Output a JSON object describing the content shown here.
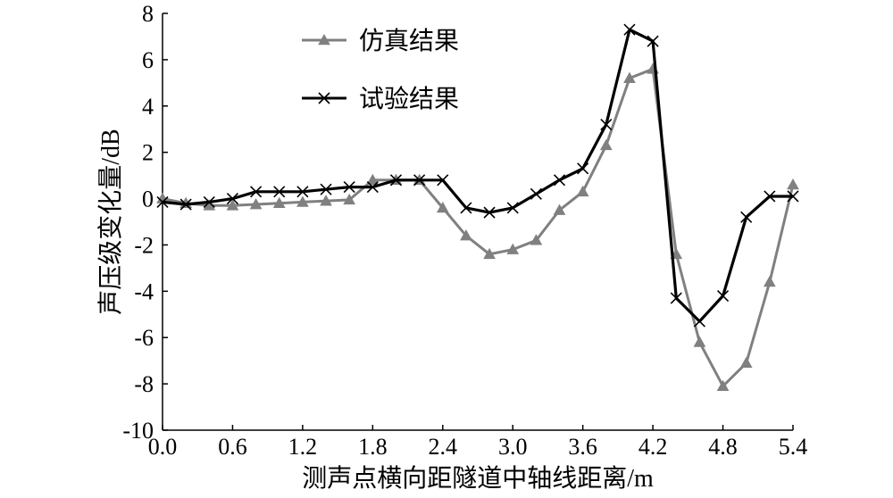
{
  "chart_data": {
    "type": "line",
    "xlabel": "测声点横向距隧道中轴线距离/m",
    "ylabel": "声压级变化量/dB",
    "xlim": [
      0,
      5.4
    ],
    "ylim": [
      -10,
      8
    ],
    "x_ticks": [
      "0.0",
      "0.6",
      "1.2",
      "1.8",
      "2.4",
      "3.0",
      "3.6",
      "4.2",
      "4.8",
      "5.4"
    ],
    "y_ticks": [
      "-10",
      "-8",
      "-6",
      "-4",
      "-2",
      "0",
      "2",
      "4",
      "6",
      "8"
    ],
    "grid": false,
    "legend_position": "top-left",
    "series": [
      {
        "name": "仿真结果",
        "color": "#808080",
        "marker": "triangle",
        "x": [
          0.0,
          0.2,
          0.4,
          0.6,
          0.8,
          1.0,
          1.2,
          1.4,
          1.6,
          1.8,
          2.0,
          2.2,
          2.4,
          2.6,
          2.8,
          3.0,
          3.2,
          3.4,
          3.6,
          3.8,
          4.0,
          4.2,
          4.4,
          4.6,
          4.8,
          5.0,
          5.2,
          5.4
        ],
        "y": [
          0.0,
          -0.2,
          -0.3,
          -0.3,
          -0.25,
          -0.2,
          -0.15,
          -0.1,
          -0.05,
          0.8,
          0.8,
          0.8,
          -0.4,
          -1.6,
          -2.4,
          -2.2,
          -1.8,
          -0.5,
          0.3,
          2.3,
          5.2,
          5.6,
          -2.4,
          -6.2,
          -8.1,
          -7.1,
          -3.6,
          0.6
        ]
      },
      {
        "name": "试验结果",
        "color": "#000000",
        "marker": "x",
        "x": [
          0.0,
          0.2,
          0.4,
          0.6,
          0.8,
          1.0,
          1.2,
          1.4,
          1.6,
          1.8,
          2.0,
          2.2,
          2.4,
          2.6,
          2.8,
          3.0,
          3.2,
          3.4,
          3.6,
          3.8,
          4.0,
          4.2,
          4.4,
          4.6,
          4.8,
          5.0,
          5.2,
          5.4
        ],
        "y": [
          -0.15,
          -0.25,
          -0.15,
          0.0,
          0.3,
          0.3,
          0.3,
          0.4,
          0.5,
          0.5,
          0.8,
          0.8,
          0.8,
          -0.4,
          -0.6,
          -0.4,
          0.2,
          0.8,
          1.3,
          3.2,
          7.3,
          6.8,
          -4.3,
          -5.3,
          -4.2,
          -0.8,
          0.1,
          0.1
        ]
      }
    ]
  }
}
